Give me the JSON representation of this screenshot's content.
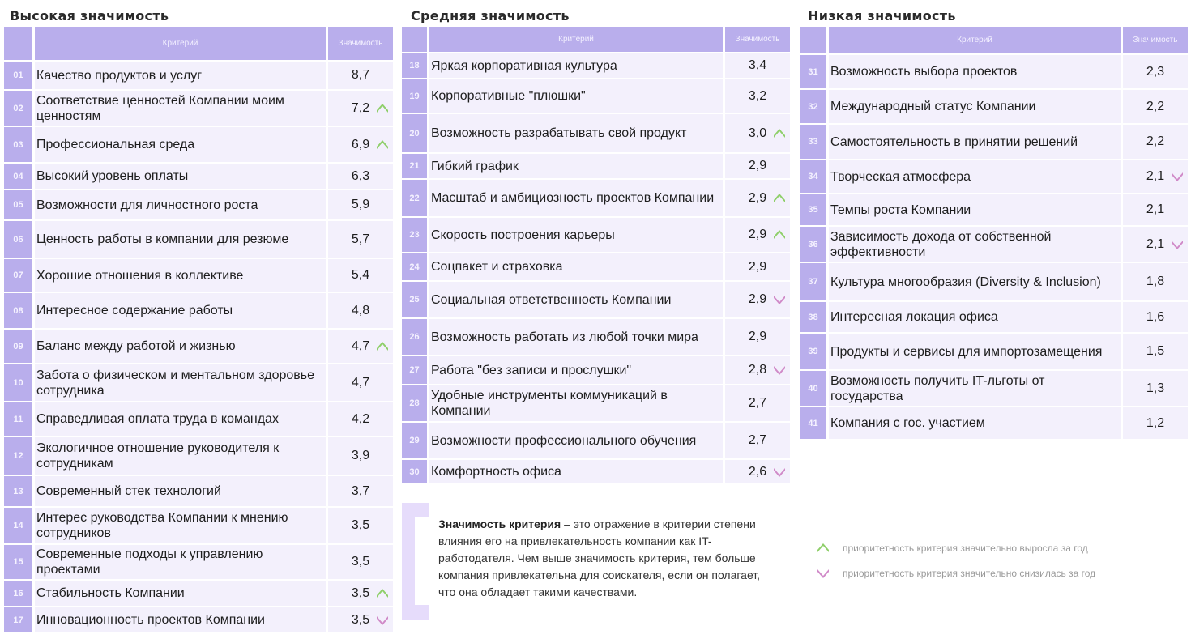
{
  "columns": {
    "criterion": "Критерий",
    "importance": "Значимость"
  },
  "colors": {
    "header": "#b9aeec",
    "row": "#f3f0fc",
    "up": "#8fcf6a",
    "down": "#d08ac8"
  },
  "tables": [
    {
      "title": "Высокая значимость",
      "rows": [
        {
          "n": "01",
          "text": "Качество продуктов и услуг",
          "value": "8,7",
          "trend": null
        },
        {
          "n": "02",
          "text": "Соответствие ценностей Компании моим ценностям",
          "value": "7,2",
          "trend": "up"
        },
        {
          "n": "03",
          "text": "Профессиональная среда",
          "value": "6,9",
          "trend": "up"
        },
        {
          "n": "04",
          "text": "Высокий уровень оплаты",
          "value": "6,3",
          "trend": null
        },
        {
          "n": "05",
          "text": "Возможности для личностного роста",
          "value": "5,9",
          "trend": null
        },
        {
          "n": "06",
          "text": "Ценность работы в компании для резюме",
          "value": "5,7",
          "trend": null
        },
        {
          "n": "07",
          "text": "Хорошие отношения в коллективе",
          "value": "5,4",
          "trend": null
        },
        {
          "n": "08",
          "text": "Интересное содержание работы",
          "value": "4,8",
          "trend": null
        },
        {
          "n": "09",
          "text": "Баланс между работой и жизнью",
          "value": "4,7",
          "trend": "up"
        },
        {
          "n": "10",
          "text": "Забота о физическом и ментальном здоровье сотрудника",
          "value": "4,7",
          "trend": null
        },
        {
          "n": "11",
          "text": "Справедливая оплата труда в командах",
          "value": "4,2",
          "trend": null
        },
        {
          "n": "12",
          "text": "Экологичное отношение руководителя к сотрудникам",
          "value": "3,9",
          "trend": null
        },
        {
          "n": "13",
          "text": "Современный стек технологий",
          "value": "3,7",
          "trend": null
        },
        {
          "n": "14",
          "text": "Интерес руководства Компании к мнению сотрудников",
          "value": "3,5",
          "trend": null
        },
        {
          "n": "15",
          "text": "Современные подходы к управлению проектами",
          "value": "3,5",
          "trend": null
        },
        {
          "n": "16",
          "text": "Стабильность Компании",
          "value": "3,5",
          "trend": "up"
        },
        {
          "n": "17",
          "text": "Инновационность проектов Компании",
          "value": "3,5",
          "trend": "down"
        }
      ]
    },
    {
      "title": "Средняя значимость",
      "rows": [
        {
          "n": "18",
          "text": "Яркая корпоративная культура",
          "value": "3,4",
          "trend": null
        },
        {
          "n": "19",
          "text": "Корпоративные \"плюшки\"",
          "value": "3,2",
          "trend": null
        },
        {
          "n": "20",
          "text": "Возможность разрабатывать свой продукт",
          "value": "3,0",
          "trend": "up"
        },
        {
          "n": "21",
          "text": "Гибкий график",
          "value": "2,9",
          "trend": null
        },
        {
          "n": "22",
          "text": "Масштаб и амбициозность проектов Компании",
          "value": "2,9",
          "trend": "up"
        },
        {
          "n": "23",
          "text": "Скорость построения карьеры",
          "value": "2,9",
          "trend": "up"
        },
        {
          "n": "24",
          "text": "Соцпакет и страховка",
          "value": "2,9",
          "trend": null
        },
        {
          "n": "25",
          "text": "Социальная ответственность Компании",
          "value": "2,9",
          "trend": "down"
        },
        {
          "n": "26",
          "text": "Возможность работать из любой точки мира",
          "value": "2,9",
          "trend": null
        },
        {
          "n": "27",
          "text": "Работа \"без записи и прослушки\"",
          "value": "2,8",
          "trend": "down"
        },
        {
          "n": "28",
          "text": "Удобные инструменты коммуникаций в Компании",
          "value": "2,7",
          "trend": null
        },
        {
          "n": "29",
          "text": "Возможности профессионального обучения",
          "value": "2,7",
          "trend": null
        },
        {
          "n": "30",
          "text": "Комфортность офиса",
          "value": "2,6",
          "trend": "down"
        }
      ]
    },
    {
      "title": "Низкая значимость",
      "rows": [
        {
          "n": "31",
          "text": "Возможность выбора проектов",
          "value": "2,3",
          "trend": null
        },
        {
          "n": "32",
          "text": "Международный статус Компании",
          "value": "2,2",
          "trend": null
        },
        {
          "n": "33",
          "text": "Самостоятельность в принятии решений",
          "value": "2,2",
          "trend": null
        },
        {
          "n": "34",
          "text": "Творческая атмосфера",
          "value": "2,1",
          "trend": "down"
        },
        {
          "n": "35",
          "text": "Темпы роста Компании",
          "value": "2,1",
          "trend": null
        },
        {
          "n": "36",
          "text": "Зависимость дохода от собственной эффективности",
          "value": "2,1",
          "trend": "down"
        },
        {
          "n": "37",
          "text": "Культура многообразия (Diversity & Inclusion)",
          "value": "1,8",
          "trend": null
        },
        {
          "n": "38",
          "text": "Интересная локация офиса",
          "value": "1,6",
          "trend": null
        },
        {
          "n": "39",
          "text": "Продукты и сервисы для импортозамещения",
          "value": "1,5",
          "trend": null
        },
        {
          "n": "40",
          "text": "Возможность получить IT-льготы от государства",
          "value": "1,3",
          "trend": null
        },
        {
          "n": "41",
          "text": "Компания с гос. участием",
          "value": "1,2",
          "trend": null
        }
      ]
    }
  ],
  "note": {
    "bold": "Значимость критерия",
    "text": " – это отражение в критерии степени влияния его на привлекательность компании как IT-работодателя. Чем выше значимость критерия, тем больше компания привлекательна для соискателя, если он полагает, что она обладает такими качествами."
  },
  "legend": {
    "up": "приоритетность критерия значительно выросла за год",
    "down": "приоритетность критерия значительно снизилась за год"
  }
}
